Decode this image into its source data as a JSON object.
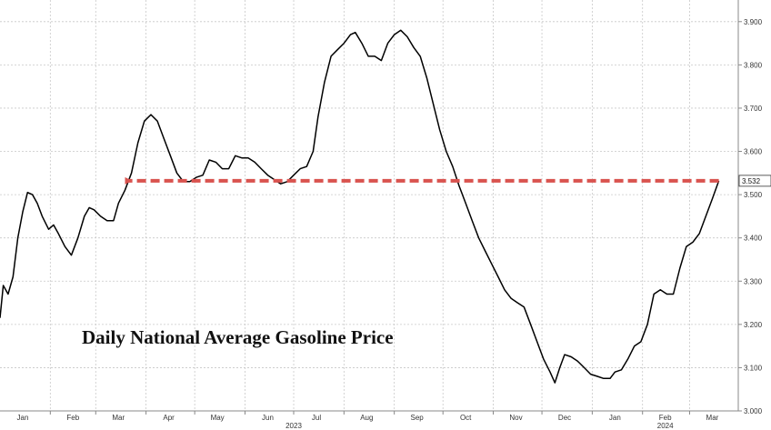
{
  "chart_data": {
    "type": "line",
    "title": "Daily National Average Gasoline Price",
    "xlabel": "",
    "ylabel": "",
    "x_range": [
      "2023-01-01",
      "2024-03-31"
    ],
    "ylim": [
      3.0,
      3.95
    ],
    "y_ticks": [
      "3.000",
      "3.100",
      "3.200",
      "3.300",
      "3.400",
      "3.500",
      "3.600",
      "3.700",
      "3.800",
      "3.900"
    ],
    "x_ticks": [
      {
        "date": "2023-01-15",
        "label": "Jan"
      },
      {
        "date": "2023-02-15",
        "label": "Feb"
      },
      {
        "date": "2023-03-15",
        "label": "Mar"
      },
      {
        "date": "2023-04-15",
        "label": "Apr"
      },
      {
        "date": "2023-05-15",
        "label": "May"
      },
      {
        "date": "2023-06-15",
        "label": "Jun"
      },
      {
        "date": "2023-07-15",
        "label": "Jul"
      },
      {
        "date": "2023-08-15",
        "label": "Aug"
      },
      {
        "date": "2023-09-15",
        "label": "Sep"
      },
      {
        "date": "2023-10-15",
        "label": "Oct"
      },
      {
        "date": "2023-11-15",
        "label": "Nov"
      },
      {
        "date": "2023-12-15",
        "label": "Dec"
      },
      {
        "date": "2024-01-15",
        "label": "Jan"
      },
      {
        "date": "2024-02-15",
        "label": "Feb"
      },
      {
        "date": "2024-03-15",
        "label": "Mar"
      }
    ],
    "year_labels": [
      {
        "date": "2023-07-01",
        "label": "2023"
      },
      {
        "date": "2024-02-15",
        "label": "2024"
      }
    ],
    "grid": true,
    "series": [
      {
        "color": "#000000",
        "points": [
          [
            "2023-01-01",
            3.215
          ],
          [
            "2023-01-03",
            3.29
          ],
          [
            "2023-01-06",
            3.27
          ],
          [
            "2023-01-09",
            3.31
          ],
          [
            "2023-01-12",
            3.4
          ],
          [
            "2023-01-15",
            3.46
          ],
          [
            "2023-01-18",
            3.505
          ],
          [
            "2023-01-21",
            3.5
          ],
          [
            "2023-01-24",
            3.48
          ],
          [
            "2023-01-27",
            3.45
          ],
          [
            "2023-01-31",
            3.42
          ],
          [
            "2023-02-03",
            3.43
          ],
          [
            "2023-02-06",
            3.41
          ],
          [
            "2023-02-10",
            3.38
          ],
          [
            "2023-02-14",
            3.36
          ],
          [
            "2023-02-18",
            3.4
          ],
          [
            "2023-02-22",
            3.45
          ],
          [
            "2023-02-25",
            3.47
          ],
          [
            "2023-02-28",
            3.465
          ],
          [
            "2023-03-04",
            3.45
          ],
          [
            "2023-03-08",
            3.44
          ],
          [
            "2023-03-12",
            3.44
          ],
          [
            "2023-03-15",
            3.48
          ],
          [
            "2023-03-19",
            3.51
          ],
          [
            "2023-03-23",
            3.55
          ],
          [
            "2023-03-27",
            3.62
          ],
          [
            "2023-03-31",
            3.67
          ],
          [
            "2023-04-04",
            3.685
          ],
          [
            "2023-04-08",
            3.67
          ],
          [
            "2023-04-12",
            3.63
          ],
          [
            "2023-04-16",
            3.59
          ],
          [
            "2023-04-20",
            3.55
          ],
          [
            "2023-04-24",
            3.53
          ],
          [
            "2023-04-28",
            3.53
          ],
          [
            "2023-05-02",
            3.54
          ],
          [
            "2023-05-06",
            3.545
          ],
          [
            "2023-05-10",
            3.58
          ],
          [
            "2023-05-14",
            3.575
          ],
          [
            "2023-05-18",
            3.56
          ],
          [
            "2023-05-22",
            3.56
          ],
          [
            "2023-05-26",
            3.59
          ],
          [
            "2023-05-30",
            3.585
          ],
          [
            "2023-06-03",
            3.585
          ],
          [
            "2023-06-07",
            3.575
          ],
          [
            "2023-06-11",
            3.56
          ],
          [
            "2023-06-15",
            3.545
          ],
          [
            "2023-06-19",
            3.535
          ],
          [
            "2023-06-23",
            3.525
          ],
          [
            "2023-06-27",
            3.53
          ],
          [
            "2023-07-01",
            3.545
          ],
          [
            "2023-07-05",
            3.56
          ],
          [
            "2023-07-09",
            3.565
          ],
          [
            "2023-07-13",
            3.6
          ],
          [
            "2023-07-16",
            3.68
          ],
          [
            "2023-07-20",
            3.76
          ],
          [
            "2023-07-24",
            3.82
          ],
          [
            "2023-07-28",
            3.835
          ],
          [
            "2023-08-01",
            3.85
          ],
          [
            "2023-08-05",
            3.87
          ],
          [
            "2023-08-08",
            3.875
          ],
          [
            "2023-08-12",
            3.85
          ],
          [
            "2023-08-16",
            3.82
          ],
          [
            "2023-08-20",
            3.82
          ],
          [
            "2023-08-24",
            3.81
          ],
          [
            "2023-08-28",
            3.85
          ],
          [
            "2023-09-01",
            3.87
          ],
          [
            "2023-09-05",
            3.88
          ],
          [
            "2023-09-09",
            3.865
          ],
          [
            "2023-09-13",
            3.84
          ],
          [
            "2023-09-17",
            3.82
          ],
          [
            "2023-09-21",
            3.77
          ],
          [
            "2023-09-25",
            3.71
          ],
          [
            "2023-09-29",
            3.65
          ],
          [
            "2023-10-03",
            3.6
          ],
          [
            "2023-10-07",
            3.565
          ],
          [
            "2023-10-11",
            3.52
          ],
          [
            "2023-10-15",
            3.48
          ],
          [
            "2023-10-19",
            3.44
          ],
          [
            "2023-10-23",
            3.4
          ],
          [
            "2023-10-27",
            3.37
          ],
          [
            "2023-10-31",
            3.34
          ],
          [
            "2023-11-04",
            3.31
          ],
          [
            "2023-11-08",
            3.28
          ],
          [
            "2023-11-12",
            3.26
          ],
          [
            "2023-11-16",
            3.25
          ],
          [
            "2023-11-20",
            3.24
          ],
          [
            "2023-11-24",
            3.2
          ],
          [
            "2023-11-28",
            3.16
          ],
          [
            "2023-12-02",
            3.12
          ],
          [
            "2023-12-06",
            3.09
          ],
          [
            "2023-12-09",
            3.065
          ],
          [
            "2023-12-12",
            3.1
          ],
          [
            "2023-12-15",
            3.13
          ],
          [
            "2023-12-19",
            3.125
          ],
          [
            "2023-12-23",
            3.115
          ],
          [
            "2023-12-27",
            3.1
          ],
          [
            "2023-12-31",
            3.085
          ],
          [
            "2024-01-04",
            3.08
          ],
          [
            "2024-01-08",
            3.075
          ],
          [
            "2024-01-12",
            3.075
          ],
          [
            "2024-01-15",
            3.09
          ],
          [
            "2024-01-19",
            3.095
          ],
          [
            "2024-01-23",
            3.12
          ],
          [
            "2024-01-27",
            3.15
          ],
          [
            "2024-01-31",
            3.16
          ],
          [
            "2024-02-04",
            3.2
          ],
          [
            "2024-02-08",
            3.27
          ],
          [
            "2024-02-12",
            3.28
          ],
          [
            "2024-02-16",
            3.27
          ],
          [
            "2024-02-20",
            3.27
          ],
          [
            "2024-02-24",
            3.33
          ],
          [
            "2024-02-28",
            3.38
          ],
          [
            "2024-03-03",
            3.39
          ],
          [
            "2024-03-07",
            3.41
          ],
          [
            "2024-03-11",
            3.45
          ],
          [
            "2024-03-15",
            3.49
          ],
          [
            "2024-03-19",
            3.532
          ]
        ]
      }
    ],
    "annotations": {
      "reference_line": {
        "y": 3.532,
        "from": "2023-03-19",
        "to": "2024-03-19",
        "color": "#d9534f",
        "style": "dashed-arrow"
      },
      "last_value_label": "3.532"
    }
  }
}
